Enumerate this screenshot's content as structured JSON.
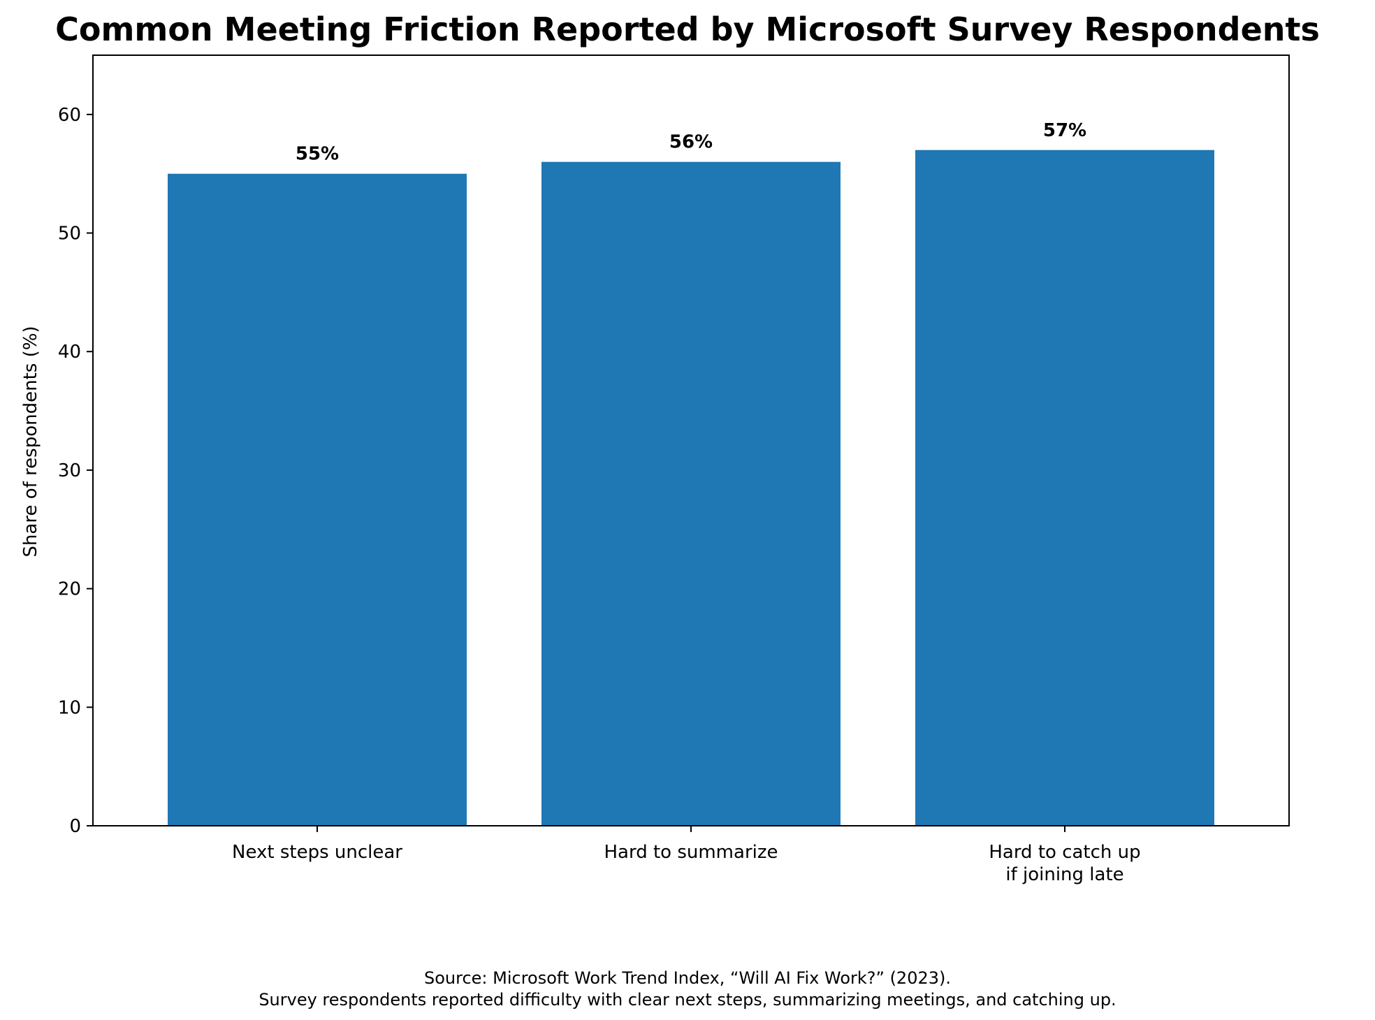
{
  "chart_data": {
    "type": "bar",
    "title": "Common Meeting Friction Reported by Microsoft Survey Respondents",
    "xlabel": "",
    "ylabel": "Share of respondents (%)",
    "categories": [
      [
        "Next steps unclear"
      ],
      [
        "Hard to summarize"
      ],
      [
        "Hard to catch up",
        "if joining late"
      ]
    ],
    "values": [
      55,
      56,
      57
    ],
    "data_labels": [
      "55%",
      "56%",
      "57%"
    ],
    "ylim": [
      0,
      65
    ],
    "yticks": [
      0,
      10,
      20,
      30,
      40,
      50,
      60
    ],
    "bar_color": "#1f77b4",
    "grid": false,
    "legend": "none",
    "caption_lines": [
      "Source: Microsoft Work Trend Index, “Will AI Fix Work?” (2023).",
      "Survey respondents reported difficulty with clear next steps, summarizing meetings, and catching up."
    ]
  }
}
